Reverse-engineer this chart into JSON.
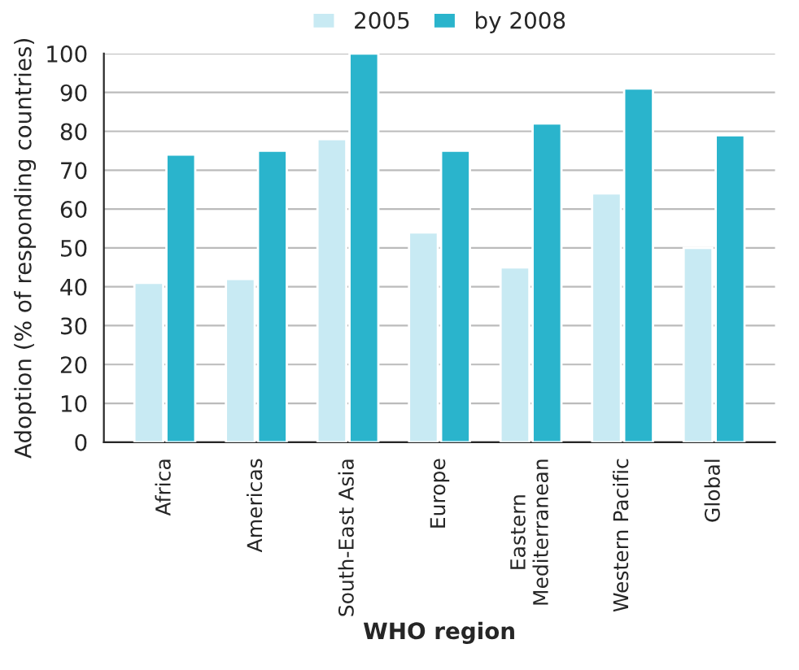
{
  "chart_data": {
    "type": "bar",
    "xlabel": "WHO region",
    "ylabel": "Adoption (% of responding countries)",
    "categories": [
      "Africa",
      "Americas",
      "South-East Asia",
      "Europe",
      "Eastern\nMediterranean",
      "Western Pacific",
      "Global"
    ],
    "series": [
      {
        "name": "2005",
        "color": "#c8eaf3",
        "values": [
          41,
          42,
          78,
          54,
          45,
          64,
          50
        ]
      },
      {
        "name": "by 2008",
        "color": "#2ab4cc",
        "values": [
          74,
          75,
          100,
          75,
          82,
          91,
          79
        ]
      }
    ],
    "ylim": [
      0,
      100
    ],
    "yticks": [
      0,
      10,
      20,
      30,
      40,
      50,
      60,
      70,
      80,
      90,
      100
    ],
    "grid": "y",
    "legend": "top"
  }
}
